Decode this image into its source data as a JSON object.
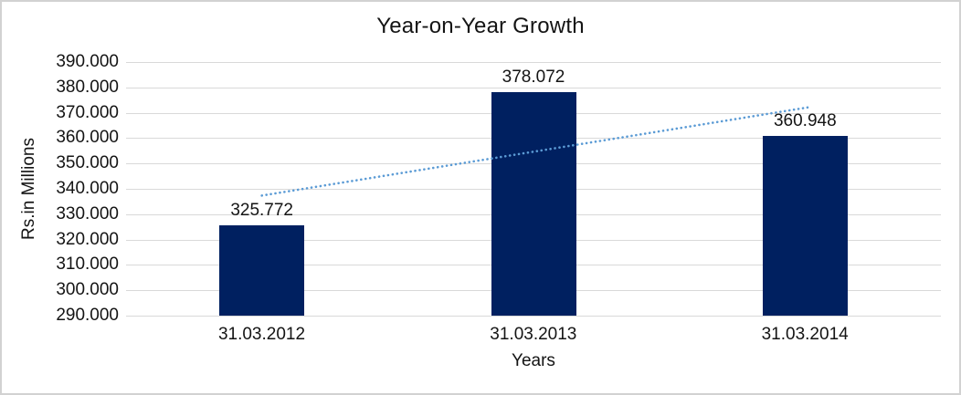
{
  "chart_data": {
    "type": "bar",
    "title": "Year-on-Year Growth",
    "xlabel": "Years",
    "ylabel": "Rs.in Millions",
    "categories": [
      "31.03.2012",
      "31.03.2013",
      "31.03.2014"
    ],
    "values": [
      325.772,
      378.072,
      360.948
    ],
    "value_labels": [
      "325.772",
      "378.072",
      "360.948"
    ],
    "y_axis": {
      "min": 290,
      "max": 390,
      "step": 10,
      "tick_labels": [
        "390.000",
        "380.000",
        "370.000",
        "360.000",
        "350.000",
        "340.000",
        "330.000",
        "320.000",
        "310.000",
        "300.000",
        "290.000"
      ]
    },
    "trendline": {
      "type": "linear",
      "style": "dotted"
    },
    "legend": {
      "visible": false
    },
    "grid": "horizontal",
    "colors": {
      "bar": "#002060",
      "trendline": "#5B9BD5",
      "gridline": "#D9D9D9",
      "text": "#141414"
    }
  }
}
